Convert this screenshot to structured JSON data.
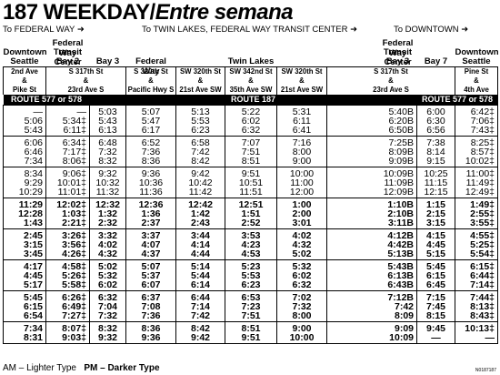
{
  "title": {
    "route": "187",
    "weekday": "WEEKDAY/",
    "spanish": "Entre semana"
  },
  "directions": {
    "left": "To FEDERAL WAY ➜",
    "center": "To TWIN LAKES, FEDERAL WAY TRANSIT CENTER ➜",
    "right": "To DOWNTOWN ➜"
  },
  "headers": [
    {
      "lines": [
        "Downtown",
        "Seattle"
      ]
    },
    {
      "lines": [
        "Federal Way",
        "Transit Center",
        "Bay 2"
      ]
    },
    {
      "lines": [
        "Bay 3"
      ]
    },
    {
      "lines": [
        "Federal Way"
      ]
    },
    {
      "lines": [
        ""
      ]
    },
    {
      "lines": [
        "Twin Lakes"
      ]
    },
    {
      "lines": [
        ""
      ]
    },
    {
      "lines": [
        ""
      ]
    },
    {
      "lines": [
        "Federal Way",
        "Transit Center",
        "Bay 3"
      ]
    },
    {
      "lines": [
        "Bay 7"
      ]
    },
    {
      "lines": [
        "Downtown",
        "Seattle"
      ]
    }
  ],
  "cross_streets": [
    {
      "lines": [
        "2nd Ave",
        "&",
        "Pike St"
      ]
    },
    {
      "lines": [
        "S 317th St",
        "&",
        "23rd Ave S"
      ]
    },
    {
      "lines": [
        "S 320th St",
        "&",
        "Pacific Hwy S"
      ]
    },
    {
      "lines": [
        "SW 320th St",
        "&",
        "21st Ave SW"
      ]
    },
    {
      "lines": [
        "SW 342nd St",
        "&",
        "35th Ave SW"
      ]
    },
    {
      "lines": [
        "SW 320th St",
        "&",
        "21st Ave SW"
      ]
    },
    {
      "lines": [
        "S 317th St",
        "&",
        "23rd Ave S"
      ]
    },
    {
      "lines": [
        "Pine St",
        "&",
        "4th Ave"
      ]
    }
  ],
  "route_labels": {
    "left": "ROUTE 577 or 578",
    "center": "ROUTE 187",
    "right": "ROUTE 577 or 578"
  },
  "groups": [
    {
      "rows": [
        [
          "—",
          "—",
          "5:03",
          "5:07",
          "5:13",
          "5:22",
          "5:31",
          "5:40B",
          "6:00",
          "6:42‡"
        ],
        [
          "5:06",
          "5:34‡",
          "5:43",
          "5:47",
          "5:53",
          "6:02",
          "6:11",
          "6:20B",
          "6:30",
          "7:06‡"
        ],
        [
          "5:43",
          "6:11‡",
          "6:13",
          "6:17",
          "6:23",
          "6:32",
          "6:41",
          "6:50B",
          "6:56",
          "7:43‡"
        ]
      ]
    },
    {
      "rows": [
        [
          "6:06",
          "6:34‡",
          "6:48",
          "6:52",
          "6:58",
          "7:07",
          "7:16",
          "7:25B",
          "7:38",
          "8:25‡"
        ],
        [
          "6:46",
          "7:17‡",
          "7:32",
          "7:36",
          "7:42",
          "7:51",
          "8:00",
          "8:09B",
          "8:14",
          "8:57‡"
        ],
        [
          "7:34",
          "8:06‡",
          "8:32",
          "8:36",
          "8:42",
          "8:51",
          "9:00",
          "9:09B",
          "9:15",
          "10:02‡"
        ]
      ]
    },
    {
      "rows": [
        [
          "8:34",
          "9:06‡",
          "9:32",
          "9:36",
          "9:42",
          "9:51",
          "10:00",
          "10:09B",
          "10:25",
          "11:00‡"
        ],
        [
          "9:29",
          "10:01‡",
          "10:32",
          "10:36",
          "10:42",
          "10:51",
          "11:00",
          "11:09B",
          "11:15",
          "11:49‡"
        ],
        [
          "10:29",
          "11:01‡",
          "11:32",
          "11:36",
          "11:42",
          "11:51",
          "12:00",
          "12:09B",
          "12:15",
          "12:49‡"
        ]
      ]
    },
    {
      "rows": [
        [
          "11:29",
          "12:02‡",
          "12:32",
          "12:36",
          "12:42",
          "12:51",
          "1:00",
          "1:10B",
          "1:15",
          "1:49‡"
        ],
        [
          "12:28",
          "1:03‡",
          "1:32",
          "1:36",
          "1:42",
          "1:51",
          "2:00",
          "2:10B",
          "2:15",
          "2:55‡"
        ],
        [
          "1:43",
          "2:21‡",
          "2:32",
          "2:37",
          "2:43",
          "2:52",
          "3:01",
          "3:11B",
          "3:15",
          "3:55‡"
        ]
      ]
    },
    {
      "rows": [
        [
          "2:45",
          "3:26‡",
          "3:32",
          "3:37",
          "3:44",
          "3:53",
          "4:02",
          "4:12B",
          "4:15",
          "4:55‡"
        ],
        [
          "3:15",
          "3:56‡",
          "4:02",
          "4:07",
          "4:14",
          "4:23",
          "4:32",
          "4:42B",
          "4:45",
          "5:25‡"
        ],
        [
          "3:45",
          "4:26‡",
          "4:32",
          "4:37",
          "4:44",
          "4:53",
          "5:02",
          "5:13B",
          "5:15",
          "5:54‡"
        ]
      ]
    },
    {
      "rows": [
        [
          "4:17",
          "4:58‡",
          "5:02",
          "5:07",
          "5:14",
          "5:23",
          "5:32",
          "5:43B",
          "5:45",
          "6:15‡"
        ],
        [
          "4:45",
          "5:26‡",
          "5:32",
          "5:37",
          "5:44",
          "5:53",
          "6:02",
          "6:13B",
          "6:15",
          "6:44‡"
        ],
        [
          "5:17",
          "5:58‡",
          "6:02",
          "6:07",
          "6:14",
          "6:23",
          "6:32",
          "6:43B",
          "6:45",
          "7:14‡"
        ]
      ]
    },
    {
      "rows": [
        [
          "5:45",
          "6:26‡",
          "6:32",
          "6:37",
          "6:44",
          "6:53",
          "7:02",
          "7:12B",
          "7:15",
          "7:44‡"
        ],
        [
          "6:15",
          "6:49‡",
          "7:04",
          "7:08",
          "7:14",
          "7:23",
          "7:32",
          "7:42",
          "7:45",
          "8:13‡"
        ],
        [
          "6:54",
          "7:27‡",
          "7:32",
          "7:36",
          "7:42",
          "7:51",
          "8:00",
          "8:09",
          "8:15",
          "8:43‡"
        ]
      ]
    },
    {
      "rows": [
        [
          "7:34",
          "8:07‡",
          "8:32",
          "8:36",
          "8:42",
          "8:51",
          "9:00",
          "9:09",
          "9:45",
          "10:13‡"
        ],
        [
          "8:31",
          "9:03‡",
          "9:32",
          "9:36",
          "9:42",
          "9:51",
          "10:00",
          "10:09",
          "—",
          "—"
        ]
      ]
    }
  ],
  "footer": {
    "am": "AM – Lighter Type",
    "pm": "PM – Darker Type"
  },
  "code": "N0187187"
}
